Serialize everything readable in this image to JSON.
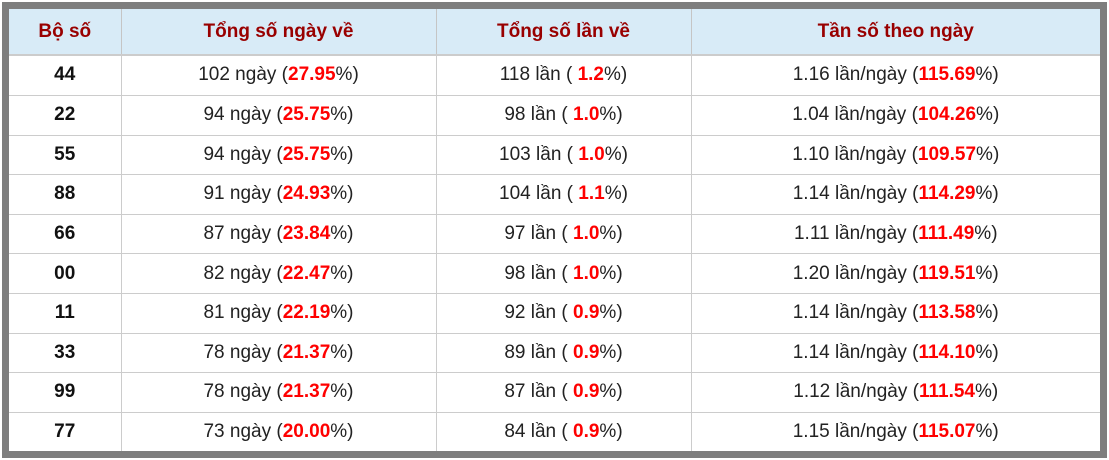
{
  "table": {
    "headers": [
      "Bộ số",
      "Tổng số ngày về",
      "Tổng số lần về",
      "Tần số theo ngày"
    ],
    "rows": [
      {
        "pair": "44",
        "days_pre": "102 ngày (",
        "days_pct": "27.95",
        "days_post": "%)",
        "times_pre": "118 lần ( ",
        "times_pct": "1.2",
        "times_post": "%)",
        "freq_pre": "1.16 lần/ngày (",
        "freq_pct": "115.69",
        "freq_post": "%)"
      },
      {
        "pair": "22",
        "days_pre": "94 ngày (",
        "days_pct": "25.75",
        "days_post": "%)",
        "times_pre": "98 lần ( ",
        "times_pct": "1.0",
        "times_post": "%)",
        "freq_pre": "1.04 lần/ngày (",
        "freq_pct": "104.26",
        "freq_post": "%)"
      },
      {
        "pair": "55",
        "days_pre": "94 ngày (",
        "days_pct": "25.75",
        "days_post": "%)",
        "times_pre": "103 lần ( ",
        "times_pct": "1.0",
        "times_post": "%)",
        "freq_pre": "1.10 lần/ngày (",
        "freq_pct": "109.57",
        "freq_post": "%)"
      },
      {
        "pair": "88",
        "days_pre": "91 ngày (",
        "days_pct": "24.93",
        "days_post": "%)",
        "times_pre": "104 lần ( ",
        "times_pct": "1.1",
        "times_post": "%)",
        "freq_pre": "1.14 lần/ngày (",
        "freq_pct": "114.29",
        "freq_post": "%)"
      },
      {
        "pair": "66",
        "days_pre": "87 ngày (",
        "days_pct": "23.84",
        "days_post": "%)",
        "times_pre": "97 lần ( ",
        "times_pct": "1.0",
        "times_post": "%)",
        "freq_pre": "1.11 lần/ngày (",
        "freq_pct": "111.49",
        "freq_post": "%)"
      },
      {
        "pair": "00",
        "days_pre": "82 ngày (",
        "days_pct": "22.47",
        "days_post": "%)",
        "times_pre": "98 lần ( ",
        "times_pct": "1.0",
        "times_post": "%)",
        "freq_pre": "1.20 lần/ngày (",
        "freq_pct": "119.51",
        "freq_post": "%)"
      },
      {
        "pair": "11",
        "days_pre": "81 ngày (",
        "days_pct": "22.19",
        "days_post": "%)",
        "times_pre": "92 lần ( ",
        "times_pct": "0.9",
        "times_post": "%)",
        "freq_pre": "1.14 lần/ngày (",
        "freq_pct": "113.58",
        "freq_post": "%)"
      },
      {
        "pair": "33",
        "days_pre": "78 ngày (",
        "days_pct": "21.37",
        "days_post": "%)",
        "times_pre": "89 lần ( ",
        "times_pct": "0.9",
        "times_post": "%)",
        "freq_pre": "1.14 lần/ngày (",
        "freq_pct": "114.10",
        "freq_post": "%)"
      },
      {
        "pair": "99",
        "days_pre": "78 ngày (",
        "days_pct": "21.37",
        "days_post": "%)",
        "times_pre": "87 lần ( ",
        "times_pct": "0.9",
        "times_post": "%)",
        "freq_pre": "1.12 lần/ngày (",
        "freq_pct": "111.54",
        "freq_post": "%)"
      },
      {
        "pair": "77",
        "days_pre": "73 ngày (",
        "days_pct": "20.00",
        "days_post": "%)",
        "times_pre": "84 lần ( ",
        "times_pct": "0.9",
        "times_post": "%)",
        "freq_pre": "1.15 lần/ngày (",
        "freq_pct": "115.07",
        "freq_post": "%)"
      }
    ]
  },
  "colors": {
    "header_bg": "#d8ebf7",
    "header_text": "#990000",
    "highlight_text": "#ff0000",
    "frame_border": "#7e7e7e",
    "grid_line": "#cccccc"
  }
}
